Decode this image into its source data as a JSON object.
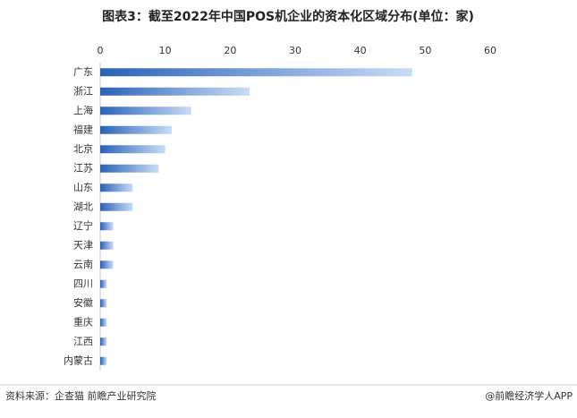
{
  "chart_data": {
    "type": "bar",
    "orientation": "horizontal",
    "title": "图表3：截至2022年中国POS机企业的资本化区域分布(单位：家)",
    "categories": [
      "广东",
      "浙江",
      "上海",
      "福建",
      "北京",
      "江苏",
      "山东",
      "湖北",
      "辽宁",
      "天津",
      "云南",
      "四川",
      "安徽",
      "重庆",
      "江西",
      "内蒙古"
    ],
    "values": [
      48,
      23,
      14,
      11,
      10,
      9,
      5,
      5,
      2,
      2,
      2,
      1,
      1,
      1,
      1,
      1
    ],
    "color": "#2a62b8",
    "xlim": [
      0,
      60
    ],
    "xticks": [
      0,
      10,
      20,
      30,
      40,
      50,
      60
    ],
    "grid": false,
    "source": "资料来源：企查猫 前瞻产业研究院",
    "credit": "@前瞻经济学人APP"
  }
}
